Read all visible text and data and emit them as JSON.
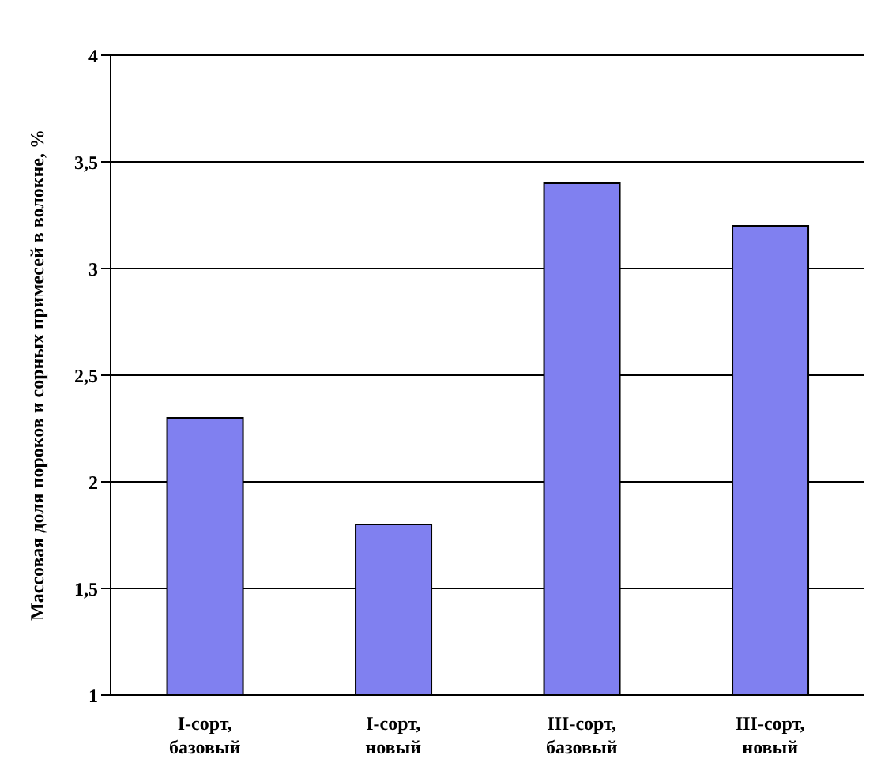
{
  "chart_data": {
    "type": "bar",
    "ylabel": "Массовая доля пороков и сорных примесей в волокне, %",
    "categories": [
      "I-сорт, базовый",
      "I-сорт, новый",
      "III-сорт, базовый",
      "III-сорт, новый"
    ],
    "values": [
      2.3,
      1.8,
      3.4,
      3.2
    ],
    "color": "#8080f0",
    "ylim": [
      1,
      4
    ],
    "yticks": [
      1,
      {
        "value": 1.5,
        "label": "1,5"
      },
      2,
      {
        "value": 2.5,
        "label": "2,5"
      },
      3,
      {
        "value": 3.5,
        "label": "3,5"
      },
      4
    ],
    "grid": "y"
  }
}
